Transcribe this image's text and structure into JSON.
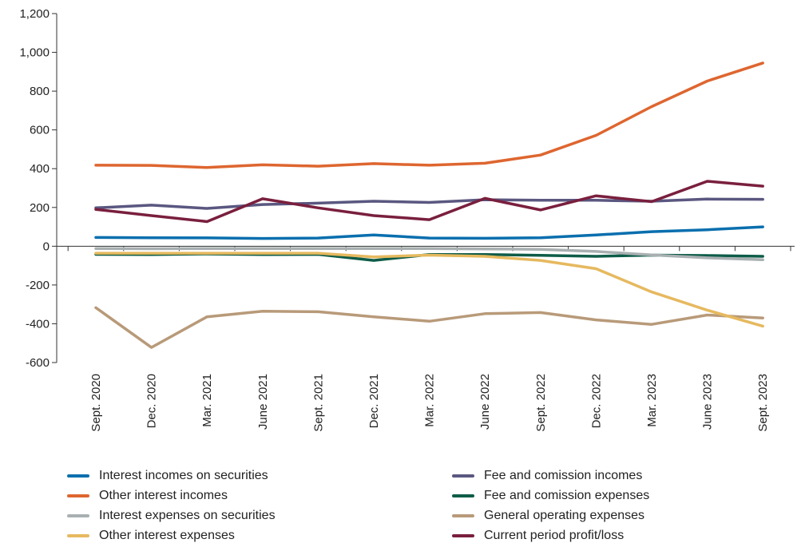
{
  "chart_data": {
    "type": "line",
    "x": [
      "Sept. 2020",
      "Dec. 2020",
      "Mar. 2021",
      "June 2021",
      "Sept. 2021",
      "Dec. 2021",
      "Mar. 2022",
      "June 2022",
      "Sept. 2022",
      "Dec. 2022",
      "Mar. 2023",
      "June 2023",
      "Sept. 2023"
    ],
    "ylim": [
      -600,
      1200
    ],
    "yticks": [
      "1,200",
      "1,000",
      "800",
      "600",
      "400",
      "200",
      "0",
      "-200",
      "-400",
      "-600"
    ],
    "grid": false,
    "legend_position": "bottom",
    "series": [
      {
        "name": "Interest incomes on securities",
        "color": "#0a6fae",
        "values": [
          45,
          44,
          43,
          40,
          42,
          58,
          42,
          41,
          44,
          58,
          75,
          85,
          100
        ]
      },
      {
        "name": "Fee and comission incomes",
        "color": "#5a5780",
        "values": [
          198,
          212,
          195,
          215,
          222,
          232,
          226,
          240,
          237,
          237,
          232,
          243,
          242
        ]
      },
      {
        "name": "Other interest incomes",
        "color": "#de6630",
        "values": [
          418,
          417,
          406,
          420,
          413,
          426,
          418,
          428,
          470,
          572,
          720,
          852,
          945
        ]
      },
      {
        "name": "Fee and comission expenses",
        "color": "#0d5c48",
        "values": [
          -42,
          -43,
          -40,
          -43,
          -42,
          -73,
          -43,
          -43,
          -47,
          -52,
          -46,
          -48,
          -52
        ]
      },
      {
        "name": "Interest expenses on securities",
        "color": "#a9b0b2",
        "values": [
          -12,
          -13,
          -12,
          -12,
          -12,
          -12,
          -12,
          -14,
          -16,
          -27,
          -45,
          -60,
          -70
        ]
      },
      {
        "name": "General operating expenses",
        "color": "#b89a79",
        "values": [
          -317,
          -522,
          -364,
          -335,
          -338,
          -364,
          -387,
          -348,
          -342,
          -380,
          -403,
          -355,
          -370
        ]
      },
      {
        "name": "Other interest expenses",
        "color": "#e6b95f",
        "values": [
          -36,
          -36,
          -36,
          -36,
          -36,
          -55,
          -46,
          -52,
          -73,
          -116,
          -236,
          -330,
          -412
        ]
      },
      {
        "name": "Current period profit/loss",
        "color": "#7a1f3e",
        "values": [
          190,
          158,
          127,
          245,
          198,
          158,
          137,
          247,
          187,
          260,
          230,
          335,
          310
        ]
      }
    ]
  }
}
